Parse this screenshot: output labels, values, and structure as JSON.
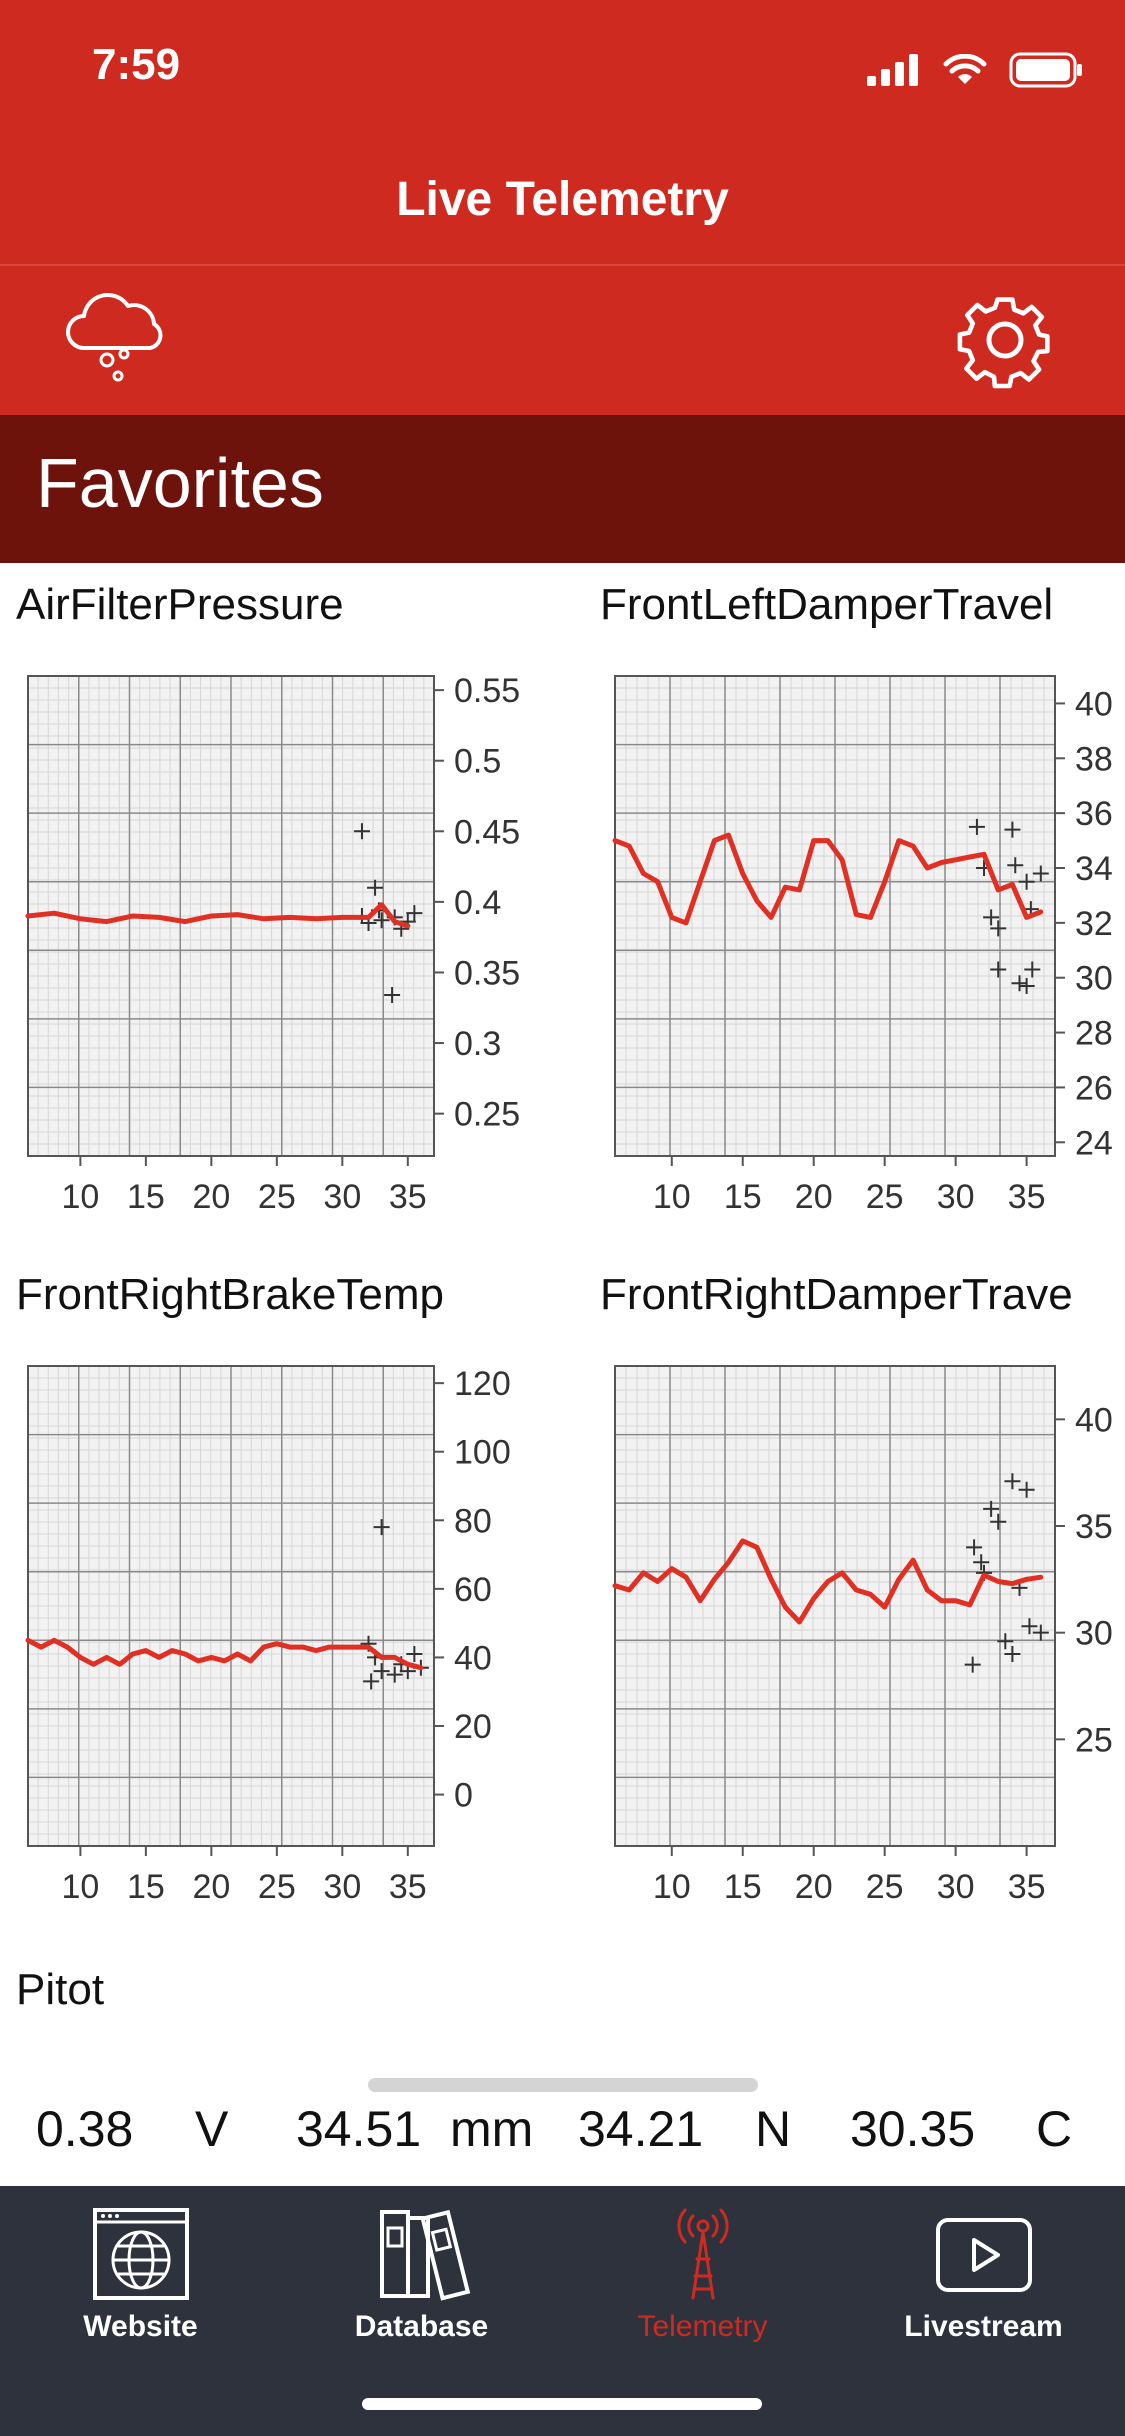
{
  "status_bar": {
    "time": "7:59"
  },
  "nav": {
    "title": "Live Telemetry"
  },
  "colors": {
    "header": "#cf2a20",
    "section": "#6d130c",
    "tabbar": "#2e323d",
    "accent": "#e03024"
  },
  "icons": {
    "weather": "cloud-rain-icon",
    "settings": "gear-icon"
  },
  "section": {
    "title": "Favorites"
  },
  "charts": [
    {
      "title": "AirFilterPressure",
      "chart_data": {
        "type": "line",
        "x_ticks": [
          "10",
          "15",
          "20",
          "25",
          "30",
          "35"
        ],
        "y_ticks": [
          "0.55",
          "0.5",
          "0.45",
          "0.4",
          "0.35",
          "0.3",
          "0.25"
        ],
        "xlim": [
          6,
          37
        ],
        "ylim": [
          0.22,
          0.56
        ],
        "series": [
          {
            "values": [
              [
                6,
                0.39
              ],
              [
                8,
                0.392
              ],
              [
                10,
                0.388
              ],
              [
                12,
                0.386
              ],
              [
                14,
                0.39
              ],
              [
                16,
                0.389
              ],
              [
                18,
                0.386
              ],
              [
                20,
                0.39
              ],
              [
                22,
                0.391
              ],
              [
                24,
                0.388
              ],
              [
                26,
                0.389
              ],
              [
                28,
                0.388
              ],
              [
                30,
                0.389
              ],
              [
                32,
                0.389
              ],
              [
                33,
                0.398
              ],
              [
                34,
                0.386
              ],
              [
                35,
                0.383
              ]
            ]
          }
        ],
        "points": [
          [
            31.5,
            0.45
          ],
          [
            32.5,
            0.41
          ],
          [
            33.8,
            0.334
          ],
          [
            31.5,
            0.39
          ],
          [
            32,
            0.385
          ],
          [
            33,
            0.387
          ],
          [
            34,
            0.389
          ],
          [
            35,
            0.386
          ],
          [
            35.5,
            0.392
          ],
          [
            32.8,
            0.394
          ],
          [
            34.5,
            0.381
          ]
        ]
      }
    },
    {
      "title": "FrontLeftDamperTravel",
      "chart_data": {
        "type": "line",
        "x_ticks": [
          "10",
          "15",
          "20",
          "25",
          "30",
          "35"
        ],
        "y_ticks": [
          "40",
          "38",
          "36",
          "34",
          "32",
          "30",
          "28",
          "26",
          "24"
        ],
        "xlim": [
          6,
          37
        ],
        "ylim": [
          23.5,
          41
        ],
        "series": [
          {
            "values": [
              [
                6,
                35
              ],
              [
                7,
                34.8
              ],
              [
                8,
                33.8
              ],
              [
                9,
                33.5
              ],
              [
                10,
                32.2
              ],
              [
                11,
                32
              ],
              [
                12,
                33.5
              ],
              [
                13,
                35
              ],
              [
                14,
                35.2
              ],
              [
                15,
                33.8
              ],
              [
                16,
                32.8
              ],
              [
                17,
                32.2
              ],
              [
                18,
                33.3
              ],
              [
                19,
                33.2
              ],
              [
                20,
                35
              ],
              [
                21,
                35
              ],
              [
                22,
                34.3
              ],
              [
                23,
                32.3
              ],
              [
                24,
                32.2
              ],
              [
                25,
                33.5
              ],
              [
                26,
                35
              ],
              [
                27,
                34.8
              ],
              [
                28,
                34
              ],
              [
                29,
                34.2
              ],
              [
                30,
                34.3
              ],
              [
                31,
                34.4
              ],
              [
                32,
                34.5
              ],
              [
                33,
                33.2
              ],
              [
                34,
                33.4
              ],
              [
                35,
                32.2
              ],
              [
                36,
                32.4
              ]
            ]
          }
        ],
        "points": [
          [
            31.5,
            35.5
          ],
          [
            32,
            34
          ],
          [
            32.5,
            32.2
          ],
          [
            33,
            31.8
          ],
          [
            34,
            35.4
          ],
          [
            34.2,
            34.1
          ],
          [
            35,
            33.5
          ],
          [
            35.3,
            32.5
          ],
          [
            35.4,
            30.3
          ],
          [
            35,
            29.7
          ],
          [
            33,
            30.3
          ],
          [
            36,
            33.8
          ],
          [
            34.5,
            29.8
          ]
        ]
      }
    },
    {
      "title": "FrontRightBrakeTemp",
      "chart_data": {
        "type": "line",
        "x_ticks": [
          "10",
          "15",
          "20",
          "25",
          "30",
          "35"
        ],
        "y_ticks": [
          "120",
          "100",
          "80",
          "60",
          "40",
          "20",
          "0"
        ],
        "xlim": [
          6,
          37
        ],
        "ylim": [
          -15,
          125
        ],
        "series": [
          {
            "values": [
              [
                6,
                45
              ],
              [
                7,
                43
              ],
              [
                8,
                45
              ],
              [
                9,
                43
              ],
              [
                10,
                40
              ],
              [
                11,
                38
              ],
              [
                12,
                40
              ],
              [
                13,
                38
              ],
              [
                14,
                41
              ],
              [
                15,
                42
              ],
              [
                16,
                40
              ],
              [
                17,
                42
              ],
              [
                18,
                41
              ],
              [
                19,
                39
              ],
              [
                20,
                40
              ],
              [
                21,
                39
              ],
              [
                22,
                41
              ],
              [
                23,
                39
              ],
              [
                24,
                43
              ],
              [
                25,
                44
              ],
              [
                26,
                43
              ],
              [
                27,
                43
              ],
              [
                28,
                42
              ],
              [
                29,
                43
              ],
              [
                30,
                43
              ],
              [
                31,
                43
              ],
              [
                32,
                43
              ],
              [
                33,
                40
              ],
              [
                34,
                40
              ],
              [
                35,
                38
              ],
              [
                36,
                37
              ]
            ]
          }
        ],
        "points": [
          [
            33,
            78
          ],
          [
            32,
            44
          ],
          [
            32.5,
            40
          ],
          [
            33,
            36
          ],
          [
            34,
            35
          ],
          [
            34.5,
            38
          ],
          [
            35,
            36
          ],
          [
            35.5,
            41
          ],
          [
            36,
            37
          ],
          [
            32.2,
            33
          ]
        ]
      }
    },
    {
      "title": "FrontRightDamperTrave",
      "chart_data": {
        "type": "line",
        "x_ticks": [
          "10",
          "15",
          "20",
          "25",
          "30",
          "35"
        ],
        "y_ticks": [
          "40",
          "35",
          "30",
          "25"
        ],
        "xlim": [
          6,
          37
        ],
        "ylim": [
          20,
          42.5
        ],
        "series": [
          {
            "values": [
              [
                6,
                32.2
              ],
              [
                7,
                32
              ],
              [
                8,
                32.8
              ],
              [
                9,
                32.4
              ],
              [
                10,
                33
              ],
              [
                11,
                32.6
              ],
              [
                12,
                31.5
              ],
              [
                13,
                32.5
              ],
              [
                14,
                33.3
              ],
              [
                15,
                34.3
              ],
              [
                16,
                34
              ],
              [
                17,
                32.5
              ],
              [
                18,
                31.2
              ],
              [
                19,
                30.5
              ],
              [
                20,
                31.6
              ],
              [
                21,
                32.4
              ],
              [
                22,
                32.8
              ],
              [
                23,
                32
              ],
              [
                24,
                31.8
              ],
              [
                25,
                31.2
              ],
              [
                26,
                32.5
              ],
              [
                27,
                33.4
              ],
              [
                28,
                32
              ],
              [
                29,
                31.5
              ],
              [
                30,
                31.5
              ],
              [
                31,
                31.3
              ],
              [
                32,
                32.7
              ],
              [
                33,
                32.4
              ],
              [
                34,
                32.3
              ],
              [
                35,
                32.5
              ],
              [
                36,
                32.6
              ]
            ]
          }
        ],
        "points": [
          [
            31.3,
            34
          ],
          [
            31.8,
            33.3
          ],
          [
            32.5,
            35.8
          ],
          [
            33,
            35.2
          ],
          [
            34,
            37.1
          ],
          [
            35,
            36.7
          ],
          [
            35.2,
            30.3
          ],
          [
            34,
            29
          ],
          [
            33.5,
            29.6
          ],
          [
            31.2,
            28.5
          ],
          [
            32,
            32.8
          ],
          [
            34.5,
            32.1
          ],
          [
            36,
            30
          ]
        ]
      }
    }
  ],
  "pitot": {
    "title": "Pitot"
  },
  "readings": [
    {
      "value": "0.38",
      "unit": "V"
    },
    {
      "value": "34.51",
      "unit": "mm"
    },
    {
      "value": "34.21",
      "unit": "N"
    },
    {
      "value": "30.35",
      "unit": "C"
    }
  ],
  "tabs": [
    {
      "label": "Website",
      "icon": "globe-window-icon"
    },
    {
      "label": "Database",
      "icon": "binders-icon"
    },
    {
      "label": "Telemetry",
      "icon": "antenna-tower-icon",
      "active": true
    },
    {
      "label": "Livestream",
      "icon": "play-icon"
    }
  ]
}
